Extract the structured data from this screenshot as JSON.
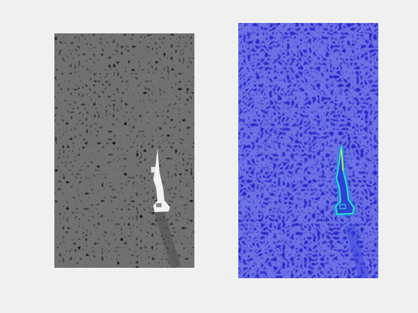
{
  "figure": {
    "background": "#f0f0f0"
  },
  "panels": [
    {
      "id": "grayscale-aerial",
      "colormap": "gray",
      "background": "#5a5a5a",
      "speckle_dark": "#262626",
      "speckle_light": "#8a8a8a",
      "object_color": "#f2f2f2"
    },
    {
      "id": "heatmap-response",
      "colormap": "parula",
      "background": "#2b28c8",
      "speckle_light": "#4a55e8",
      "edge_low": "#1f8fe0",
      "edge_high": "#2ee0c8",
      "edge_peak": "#f5e52a"
    }
  ]
}
